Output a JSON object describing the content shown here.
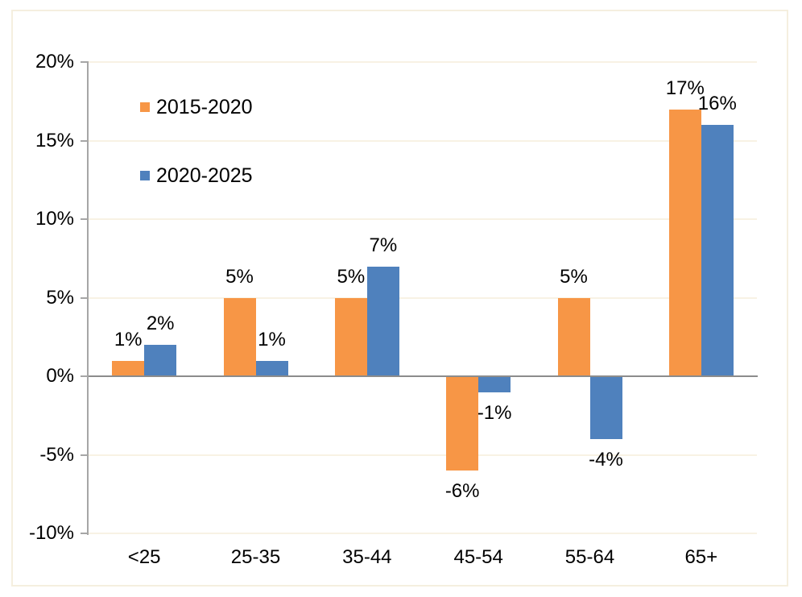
{
  "chart_data": {
    "type": "bar",
    "title": "",
    "categories": [
      "<25",
      "25-35",
      "35-44",
      "45-54",
      "55-64",
      "65+"
    ],
    "series": [
      {
        "name": "2015-2020",
        "color": "#F79646",
        "values": [
          1,
          5,
          5,
          -6,
          5,
          17
        ],
        "labels": [
          "1%",
          "5%",
          "5%",
          "-6%",
          "5%",
          "17%"
        ]
      },
      {
        "name": "2020-2025",
        "color": "#4F81BD",
        "values": [
          2,
          1,
          7,
          -1,
          -4,
          16
        ],
        "labels": [
          "2%",
          "1%",
          "7%",
          "-1%",
          "-4%",
          "16%"
        ]
      }
    ],
    "y_axis": {
      "ticks": [
        20,
        15,
        10,
        5,
        0,
        -5,
        -10
      ],
      "labels": [
        "20%",
        "15%",
        "10%",
        "5%",
        "0%",
        "-5%",
        "-10%"
      ],
      "min": -10,
      "max": 20
    },
    "grid": true,
    "legend_position": "top-left-inside",
    "value_suffix": "%"
  },
  "colors": {
    "series1": "#F79646",
    "series2": "#4F81BD",
    "zero_line": "#8C8C8C",
    "axis_line": "#A6A6A6",
    "gridline": "#F8F2E4",
    "frame_border": "#F5EFDF",
    "text": "#000000",
    "background": "#FFFFFF"
  }
}
